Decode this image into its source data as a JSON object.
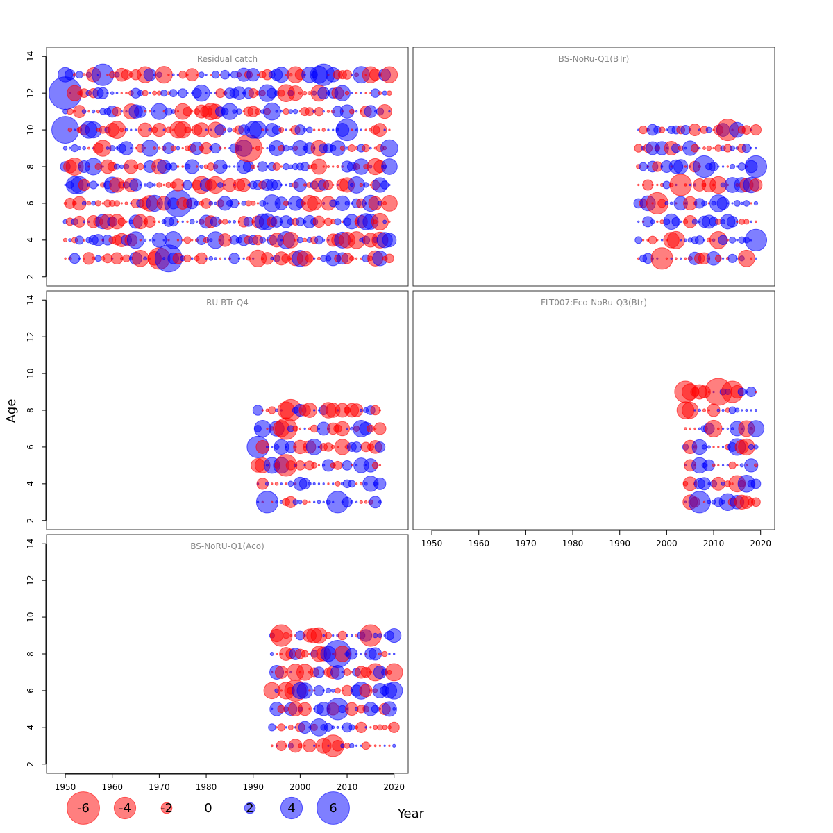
{
  "chart_data": {
    "type": "scatter",
    "ylabel": "Age",
    "xlabel": "Year",
    "xlim": [
      1946,
      2023
    ],
    "ylim": [
      1.5,
      14.5
    ],
    "x_ticks": [
      1950,
      1960,
      1970,
      1980,
      1990,
      2000,
      2010,
      2020
    ],
    "y_ticks": [
      2,
      4,
      6,
      8,
      10,
      12,
      14
    ],
    "colors": {
      "negative": "#ff0000",
      "positive": "#0000ff",
      "frame": "#333333",
      "title": "#888888"
    },
    "legend": {
      "placement": "bottom-left",
      "items": [
        {
          "label": "-6",
          "value": -6
        },
        {
          "label": "-4",
          "value": -4
        },
        {
          "label": "-2",
          "value": -2
        },
        {
          "label": "0",
          "value": 0
        },
        {
          "label": "2",
          "value": 2
        },
        {
          "label": "4",
          "value": 4
        },
        {
          "label": "6",
          "value": 6
        }
      ]
    },
    "panels": [
      {
        "title": "Residual catch",
        "years": [
          1950,
          2019
        ],
        "ages": [
          3,
          4,
          5,
          6,
          7,
          8,
          9,
          10,
          11,
          12,
          13
        ],
        "seed": 11,
        "residuals": [
          {
            "year": 1950,
            "age": 12,
            "value": 6
          },
          {
            "year": 1950,
            "age": 10,
            "value": 5
          },
          {
            "year": 1958,
            "age": 13,
            "value": 4
          },
          {
            "year": 1970,
            "age": 3,
            "value": -4
          },
          {
            "year": 1972,
            "age": 3,
            "value": 5
          },
          {
            "year": 1974,
            "age": 6,
            "value": 5
          },
          {
            "year": 1989,
            "age": 9,
            "value": -5
          },
          {
            "year": 1999,
            "age": 13,
            "value": -3
          },
          {
            "year": 2005,
            "age": 13,
            "value": 4
          },
          {
            "year": 2010,
            "age": 10,
            "value": 4
          },
          {
            "year": 2015,
            "age": 6,
            "value": 3
          },
          {
            "year": 2019,
            "age": 13,
            "value": -3
          }
        ]
      },
      {
        "title": "BS-NoRu-Q1(BTr)",
        "years": [
          1994,
          2019
        ],
        "ages": [
          3,
          4,
          5,
          6,
          7,
          8,
          9,
          10
        ],
        "seed": 23,
        "residuals": [
          {
            "year": 1998,
            "age": 6,
            "value": -4
          },
          {
            "year": 1999,
            "age": 3,
            "value": -4
          },
          {
            "year": 2003,
            "age": 7,
            "value": -4
          },
          {
            "year": 2008,
            "age": 8,
            "value": 4
          },
          {
            "year": 2013,
            "age": 10,
            "value": -4
          },
          {
            "year": 2019,
            "age": 4,
            "value": 4
          },
          {
            "year": 2019,
            "age": 8,
            "value": 4
          }
        ]
      },
      {
        "title": "RU-BTr-Q4",
        "years": [
          1991,
          2017
        ],
        "ages": [
          3,
          4,
          5,
          6,
          7,
          8
        ],
        "seed": 37,
        "residuals": [
          {
            "year": 1991,
            "age": 6,
            "value": 4
          },
          {
            "year": 1993,
            "age": 3,
            "value": 4
          },
          {
            "year": 1997,
            "age": 5,
            "value": -4
          },
          {
            "year": 1997,
            "age": 7,
            "value": -4
          },
          {
            "year": 1998,
            "age": 8,
            "value": -4
          },
          {
            "year": 2008,
            "age": 3,
            "value": 4
          }
        ]
      },
      {
        "title": "FLT007:Eco-NoRu-Q3(Btr)",
        "years": [
          2004,
          2019
        ],
        "ages": [
          3,
          4,
          5,
          6,
          7,
          8,
          9
        ],
        "seed": 41,
        "residuals": [
          {
            "year": 2004,
            "age": 9,
            "value": -4
          },
          {
            "year": 2007,
            "age": 3,
            "value": 4
          },
          {
            "year": 2011,
            "age": 9,
            "value": -5
          },
          {
            "year": 2014,
            "age": 9,
            "value": -4
          },
          {
            "year": 2017,
            "age": 6,
            "value": -3
          },
          {
            "year": 2019,
            "age": 7,
            "value": 3
          }
        ]
      },
      {
        "title": "BS-NoRU-Q1(Aco)",
        "years": [
          1994,
          2020
        ],
        "ages": [
          3,
          4,
          5,
          6,
          7,
          8,
          9
        ],
        "seed": 53,
        "residuals": [
          {
            "year": 1996,
            "age": 9,
            "value": -4
          },
          {
            "year": 1994,
            "age": 6,
            "value": -3
          },
          {
            "year": 1999,
            "age": 6,
            "value": -4
          },
          {
            "year": 2007,
            "age": 3,
            "value": -4
          },
          {
            "year": 2008,
            "age": 8,
            "value": 5
          },
          {
            "year": 2008,
            "age": 5,
            "value": 4
          },
          {
            "year": 2015,
            "age": 9,
            "value": -4
          }
        ]
      }
    ]
  }
}
